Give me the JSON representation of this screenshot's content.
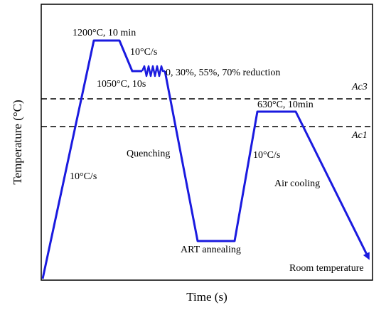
{
  "axes": {
    "xlabel": "Time (s)",
    "ylabel": "Temperature (°C)"
  },
  "thresholds": {
    "ac3": "Ac3",
    "ac1": "Ac1"
  },
  "labels": {
    "solution": "1200°C, 10 min",
    "cool_rate_1": "10°C/s",
    "rolling_temp": "1050°C, 10s",
    "reduction": "0, 30%, 55%, 70% reduction",
    "heat_rate": "10°C/s",
    "quenching": "Quenching",
    "art_annealing": "ART annealing",
    "heat_rate_2": "10°C/s",
    "annealing_hold": "630°C, 10min",
    "air_cooling": "Air cooling",
    "room_temp": "Room temperature"
  },
  "colors": {
    "path": "#1a1adf",
    "frame": "#000000",
    "dashed": "#000000"
  }
}
